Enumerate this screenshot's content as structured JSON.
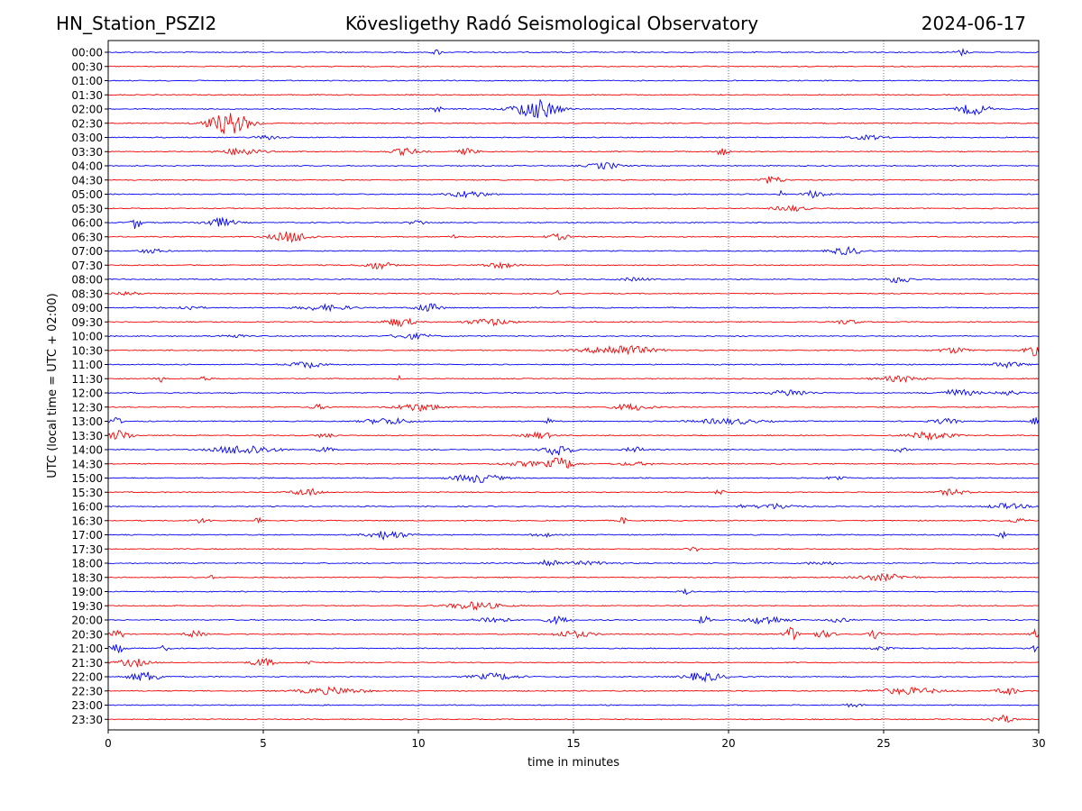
{
  "header": {
    "station": "HN_Station_PSZI2",
    "observatory": "Kövesligethy Radó Seismological Observatory",
    "date": "2024-06-17"
  },
  "chart_data": {
    "type": "line",
    "title": "Kövesligethy Radó Seismological Observatory",
    "xlabel": "time in minutes",
    "ylabel": "UTC (local time = UTC + 02:00)",
    "xlim": [
      0,
      30
    ],
    "x_ticks": [
      0,
      5,
      10,
      15,
      20,
      25,
      30
    ],
    "grid": "vertical dotted at x ticks",
    "colors": [
      "#0000ff",
      "#ff0000"
    ],
    "rows": [
      {
        "label": "00:00",
        "color": "#0000ff",
        "bursts": [
          [
            10.6,
            0.3,
            0.25
          ],
          [
            27.5,
            0.4,
            0.3
          ]
        ]
      },
      {
        "label": "00:30",
        "color": "#ff0000",
        "bursts": []
      },
      {
        "label": "01:00",
        "color": "#0000ff",
        "bursts": []
      },
      {
        "label": "01:30",
        "color": "#ff0000",
        "bursts": []
      },
      {
        "label": "02:00",
        "color": "#0000ff",
        "bursts": [
          [
            13.8,
            1.4,
            0.9
          ],
          [
            27.9,
            1.0,
            0.5
          ],
          [
            10.6,
            0.3,
            0.3
          ]
        ]
      },
      {
        "label": "02:30",
        "color": "#ff0000",
        "bursts": [
          [
            3.9,
            1.4,
            1.0
          ]
        ]
      },
      {
        "label": "03:00",
        "color": "#0000ff",
        "bursts": [
          [
            5.2,
            0.8,
            0.2
          ],
          [
            24.5,
            1.0,
            0.2
          ]
        ]
      },
      {
        "label": "03:30",
        "color": "#ff0000",
        "bursts": [
          [
            4.3,
            1.2,
            0.35
          ],
          [
            9.6,
            0.9,
            0.3
          ],
          [
            11.6,
            0.6,
            0.3
          ],
          [
            19.8,
            0.4,
            0.35
          ]
        ]
      },
      {
        "label": "04:00",
        "color": "#0000ff",
        "bursts": [
          [
            16.0,
            1.0,
            0.3
          ]
        ]
      },
      {
        "label": "04:30",
        "color": "#ff0000",
        "bursts": [
          [
            21.4,
            0.7,
            0.35
          ]
        ]
      },
      {
        "label": "05:00",
        "color": "#0000ff",
        "bursts": [
          [
            11.6,
            1.2,
            0.3
          ],
          [
            22.8,
            0.7,
            0.35
          ],
          [
            21.7,
            0.2,
            0.3
          ]
        ]
      },
      {
        "label": "05:30",
        "color": "#ff0000",
        "bursts": [
          [
            22.0,
            1.0,
            0.25
          ]
        ]
      },
      {
        "label": "06:00",
        "color": "#0000ff",
        "bursts": [
          [
            0.9,
            0.3,
            0.6
          ],
          [
            3.6,
            1.0,
            0.4
          ],
          [
            10.0,
            0.6,
            0.2
          ]
        ]
      },
      {
        "label": "06:30",
        "color": "#ff0000",
        "bursts": [
          [
            5.9,
            1.2,
            0.5
          ],
          [
            14.5,
            0.8,
            0.25
          ],
          [
            11.1,
            0.3,
            0.2
          ]
        ]
      },
      {
        "label": "07:00",
        "color": "#0000ff",
        "bursts": [
          [
            23.8,
            1.0,
            0.35
          ],
          [
            1.4,
            0.8,
            0.2
          ]
        ]
      },
      {
        "label": "07:30",
        "color": "#ff0000",
        "bursts": [
          [
            8.7,
            0.9,
            0.35
          ],
          [
            12.6,
            1.0,
            0.25
          ]
        ]
      },
      {
        "label": "08:00",
        "color": "#0000ff",
        "bursts": [
          [
            25.5,
            0.8,
            0.35
          ],
          [
            17.0,
            1.0,
            0.15
          ]
        ]
      },
      {
        "label": "08:30",
        "color": "#ff0000",
        "bursts": [
          [
            0.6,
            0.8,
            0.2
          ],
          [
            14.5,
            0.1,
            0.3
          ]
        ]
      },
      {
        "label": "09:00",
        "color": "#0000ff",
        "bursts": [
          [
            10.3,
            0.8,
            0.4
          ],
          [
            7.0,
            1.6,
            0.25
          ],
          [
            2.6,
            0.8,
            0.2
          ]
        ]
      },
      {
        "label": "09:30",
        "color": "#ff0000",
        "bursts": [
          [
            9.4,
            0.9,
            0.4
          ],
          [
            12.3,
            1.4,
            0.3
          ],
          [
            23.8,
            0.8,
            0.2
          ]
        ]
      },
      {
        "label": "10:00",
        "color": "#0000ff",
        "bursts": [
          [
            9.8,
            1.2,
            0.25
          ],
          [
            4.0,
            0.8,
            0.15
          ]
        ]
      },
      {
        "label": "10:30",
        "color": "#ff0000",
        "bursts": [
          [
            16.5,
            2.0,
            0.5
          ],
          [
            29.8,
            0.5,
            0.5
          ],
          [
            27.3,
            1.0,
            0.25
          ]
        ]
      },
      {
        "label": "11:00",
        "color": "#0000ff",
        "bursts": [
          [
            6.4,
            1.0,
            0.3
          ],
          [
            29.0,
            1.0,
            0.25
          ]
        ]
      },
      {
        "label": "11:30",
        "color": "#ff0000",
        "bursts": [
          [
            1.7,
            0.3,
            0.3
          ],
          [
            9.4,
            0.2,
            0.35
          ],
          [
            25.5,
            1.4,
            0.25
          ],
          [
            3.1,
            0.4,
            0.2
          ]
        ]
      },
      {
        "label": "12:00",
        "color": "#0000ff",
        "bursts": [
          [
            22.0,
            1.2,
            0.3
          ],
          [
            27.4,
            1.2,
            0.3
          ],
          [
            29.0,
            0.8,
            0.2
          ]
        ]
      },
      {
        "label": "12:30",
        "color": "#ff0000",
        "bursts": [
          [
            10.0,
            1.4,
            0.35
          ],
          [
            16.9,
            1.2,
            0.3
          ],
          [
            6.8,
            0.6,
            0.2
          ]
        ]
      },
      {
        "label": "13:00",
        "color": "#0000ff",
        "bursts": [
          [
            9.0,
            1.4,
            0.3
          ],
          [
            20.0,
            2.0,
            0.25
          ],
          [
            0.2,
            0.4,
            0.4
          ],
          [
            14.2,
            0.2,
            0.45
          ],
          [
            27.0,
            0.8,
            0.25
          ],
          [
            29.9,
            0.3,
            0.35
          ]
        ]
      },
      {
        "label": "13:30",
        "color": "#ff0000",
        "bursts": [
          [
            0.4,
            0.7,
            0.5
          ],
          [
            26.5,
            1.4,
            0.35
          ],
          [
            13.9,
            0.9,
            0.3
          ],
          [
            7.0,
            0.6,
            0.2
          ]
        ]
      },
      {
        "label": "14:00",
        "color": "#0000ff",
        "bursts": [
          [
            4.4,
            1.8,
            0.45
          ],
          [
            14.5,
            0.8,
            0.6
          ],
          [
            7.0,
            0.5,
            0.25
          ],
          [
            17.0,
            0.6,
            0.25
          ],
          [
            25.5,
            0.5,
            0.2
          ]
        ]
      },
      {
        "label": "14:30",
        "color": "#ff0000",
        "bursts": [
          [
            14.6,
            0.9,
            0.55
          ],
          [
            13.4,
            1.4,
            0.2
          ],
          [
            17.0,
            1.2,
            0.15
          ]
        ]
      },
      {
        "label": "15:00",
        "color": "#0000ff",
        "bursts": [
          [
            11.9,
            1.5,
            0.4
          ],
          [
            23.5,
            0.6,
            0.2
          ]
        ]
      },
      {
        "label": "15:30",
        "color": "#ff0000",
        "bursts": [
          [
            6.4,
            0.9,
            0.35
          ],
          [
            19.7,
            0.3,
            0.3
          ],
          [
            27.2,
            1.0,
            0.25
          ]
        ]
      },
      {
        "label": "16:00",
        "color": "#0000ff",
        "bursts": [
          [
            21.5,
            1.4,
            0.25
          ],
          [
            29.0,
            1.2,
            0.25
          ],
          [
            20.4,
            0.2,
            0.3
          ]
        ]
      },
      {
        "label": "16:30",
        "color": "#ff0000",
        "bursts": [
          [
            4.8,
            0.2,
            0.4
          ],
          [
            16.6,
            0.2,
            0.4
          ],
          [
            3.0,
            0.6,
            0.2
          ],
          [
            29.3,
            0.8,
            0.15
          ]
        ]
      },
      {
        "label": "17:00",
        "color": "#0000ff",
        "bursts": [
          [
            9.0,
            1.2,
            0.4
          ],
          [
            14.0,
            0.6,
            0.2
          ],
          [
            28.8,
            0.3,
            0.3
          ]
        ]
      },
      {
        "label": "17:30",
        "color": "#ff0000",
        "bursts": [
          [
            18.9,
            0.4,
            0.2
          ]
        ]
      },
      {
        "label": "18:00",
        "color": "#0000ff",
        "bursts": [
          [
            14.2,
            0.6,
            0.4
          ],
          [
            15.5,
            1.8,
            0.15
          ],
          [
            23.0,
            1.0,
            0.15
          ]
        ]
      },
      {
        "label": "18:30",
        "color": "#ff0000",
        "bursts": [
          [
            25.0,
            1.6,
            0.3
          ],
          [
            3.3,
            0.2,
            0.2
          ]
        ]
      },
      {
        "label": "19:00",
        "color": "#0000ff",
        "bursts": [
          [
            18.6,
            0.3,
            0.25
          ]
        ]
      },
      {
        "label": "19:30",
        "color": "#ff0000",
        "bursts": [
          [
            11.8,
            1.6,
            0.35
          ]
        ]
      },
      {
        "label": "20:00",
        "color": "#0000ff",
        "bursts": [
          [
            12.4,
            1.0,
            0.3
          ],
          [
            14.5,
            0.7,
            0.35
          ],
          [
            21.2,
            1.2,
            0.4
          ],
          [
            19.2,
            0.4,
            0.35
          ],
          [
            23.6,
            0.6,
            0.25
          ]
        ]
      },
      {
        "label": "20:30",
        "color": "#ff0000",
        "bursts": [
          [
            0.3,
            0.4,
            0.45
          ],
          [
            2.8,
            0.6,
            0.3
          ],
          [
            22.0,
            0.4,
            0.7
          ],
          [
            23.0,
            0.8,
            0.3
          ],
          [
            15.0,
            1.2,
            0.3
          ],
          [
            24.7,
            0.4,
            0.4
          ],
          [
            29.9,
            0.3,
            0.4
          ]
        ]
      },
      {
        "label": "21:00",
        "color": "#0000ff",
        "bursts": [
          [
            0.3,
            0.5,
            0.35
          ],
          [
            1.8,
            0.3,
            0.25
          ],
          [
            24.9,
            0.6,
            0.2
          ],
          [
            29.8,
            0.3,
            0.35
          ]
        ]
      },
      {
        "label": "21:30",
        "color": "#ff0000",
        "bursts": [
          [
            0.8,
            1.0,
            0.35
          ],
          [
            5.0,
            0.8,
            0.35
          ],
          [
            6.5,
            0.3,
            0.2
          ]
        ]
      },
      {
        "label": "22:00",
        "color": "#0000ff",
        "bursts": [
          [
            1.2,
            1.0,
            0.45
          ],
          [
            12.5,
            1.4,
            0.3
          ],
          [
            19.2,
            1.2,
            0.4
          ]
        ]
      },
      {
        "label": "22:30",
        "color": "#ff0000",
        "bursts": [
          [
            7.2,
            2.0,
            0.3
          ],
          [
            25.8,
            2.0,
            0.3
          ],
          [
            29.0,
            0.6,
            0.4
          ]
        ]
      },
      {
        "label": "23:00",
        "color": "#0000ff",
        "bursts": [
          [
            24.0,
            0.6,
            0.15
          ]
        ]
      },
      {
        "label": "23:30",
        "color": "#ff0000",
        "bursts": [
          [
            28.8,
            0.8,
            0.35
          ]
        ]
      }
    ]
  }
}
